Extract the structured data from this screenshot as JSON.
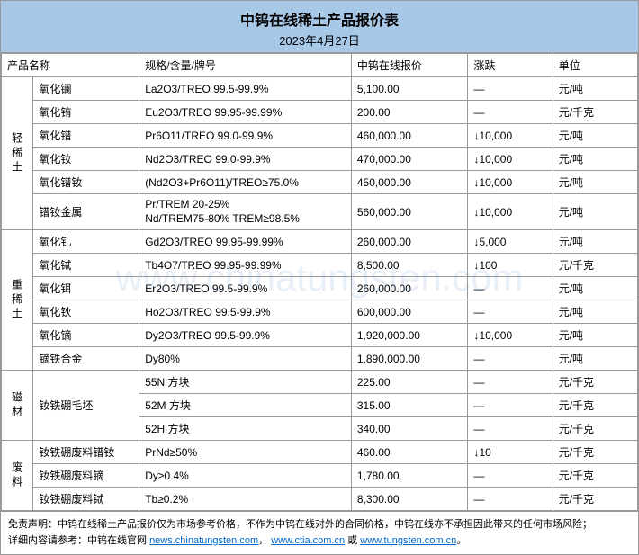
{
  "header": {
    "title": "中钨在线稀土产品报价表",
    "date": "2023年4月27日"
  },
  "columns": {
    "name": "产品名称",
    "spec": "规格/含量/牌号",
    "price": "中钨在线报价",
    "change": "涨跌",
    "unit": "单位"
  },
  "categories": [
    {
      "label": "轻稀土",
      "rows": [
        {
          "name": "氧化镧",
          "spec": "La2O3/TREO 99.5-99.9%",
          "price": "5,100.00",
          "change": "—",
          "unit": "元/吨"
        },
        {
          "name": "氧化铕",
          "spec": "Eu2O3/TREO 99.95-99.99%",
          "price": "200.00",
          "change": "—",
          "unit": "元/千克"
        },
        {
          "name": "氧化镨",
          "spec": "Pr6O11/TREO 99.0-99.9%",
          "price": "460,000.00",
          "change": "↓10,000",
          "unit": "元/吨"
        },
        {
          "name": "氧化钕",
          "spec": "Nd2O3/TREO 99.0-99.9%",
          "price": "470,000.00",
          "change": "↓10,000",
          "unit": "元/吨"
        },
        {
          "name": "氧化镨钕",
          "spec": "(Nd2O3+Pr6O11)/TREO≥75.0%",
          "price": "450,000.00",
          "change": "↓10,000",
          "unit": "元/吨"
        },
        {
          "name": "镨钕金属",
          "spec": "Pr/TREM 20-25%\nNd/TREM75-80% TREM≥98.5%",
          "price": "560,000.00",
          "change": "↓10,000",
          "unit": "元/吨"
        }
      ]
    },
    {
      "label": "重稀土",
      "rows": [
        {
          "name": "氧化钆",
          "spec": "Gd2O3/TREO 99.95-99.99%",
          "price": "260,000.00",
          "change": "↓5,000",
          "unit": "元/吨"
        },
        {
          "name": "氧化铽",
          "spec": "Tb4O7/TREO 99.95-99.99%",
          "price": "8,500.00",
          "change": "↓100",
          "unit": "元/千克"
        },
        {
          "name": "氧化铒",
          "spec": "Er2O3/TREO 99.5-99.9%",
          "price": "260,000.00",
          "change": "—",
          "unit": "元/吨"
        },
        {
          "name": "氧化钬",
          "spec": "Ho2O3/TREO 99.5-99.9%",
          "price": "600,000.00",
          "change": "—",
          "unit": "元/吨"
        },
        {
          "name": "氧化镝",
          "spec": "Dy2O3/TREO 99.5-99.9%",
          "price": "1,920,000.00",
          "change": "↓10,000",
          "unit": "元/吨"
        },
        {
          "name": "镝铁合金",
          "spec": "Dy80%",
          "price": "1,890,000.00",
          "change": "—",
          "unit": "元/吨"
        }
      ]
    },
    {
      "label": "磁材",
      "rows": [
        {
          "name": "钕铁硼毛坯",
          "name_rowspan": 3,
          "spec": "55N 方块",
          "price": "225.00",
          "change": "—",
          "unit": "元/千克"
        },
        {
          "spec": "52M 方块",
          "price": "315.00",
          "change": "—",
          "unit": "元/千克"
        },
        {
          "spec": "52H 方块",
          "price": "340.00",
          "change": "—",
          "unit": "元/千克"
        }
      ]
    },
    {
      "label": "废料",
      "rows": [
        {
          "name": "钕铁硼废料镨钕",
          "spec": "PrNd≥50%",
          "price": "460.00",
          "change": "↓10",
          "unit": "元/千克"
        },
        {
          "name": "钕铁硼废料镝",
          "spec": "Dy≥0.4%",
          "price": "1,780.00",
          "change": "—",
          "unit": "元/千克"
        },
        {
          "name": "钕铁硼废料铽",
          "spec": "Tb≥0.2%",
          "price": "8,300.00",
          "change": "—",
          "unit": "元/千克"
        }
      ]
    }
  ],
  "footer": {
    "disclaimer": "免责声明：中钨在线稀土产品报价仅为市场参考价格，不作为中钨在线对外的合同价格，中钨在线亦不承担因此带来的任何市场风险；",
    "links_label": "详细内容请参考：中钨在线官网 ",
    "link1": "news.chinatungsten.com",
    "sep1": "，",
    "link2": "www.ctia.com.cn",
    "sep2": " 或 ",
    "link3": "www.tungsten.com.cn",
    "end": "。"
  },
  "watermark": "www.chinatungsten.com"
}
